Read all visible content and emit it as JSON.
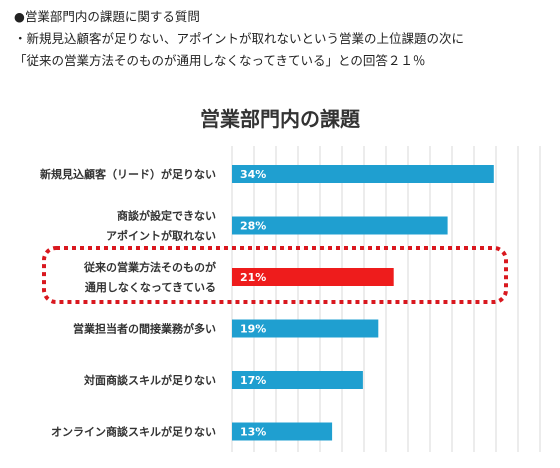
{
  "intro": {
    "line1": "●営業部門内の課題に関する質問",
    "line2": "・新規見込顧客が足りない、アポイントが取れないという営業の上位課題の次に",
    "line3": "「従来の営業方法そのものが通用しなくなってきている」との回答２１％"
  },
  "chart_data": {
    "type": "bar",
    "orientation": "horizontal",
    "title": "営業部門内の課題",
    "categories": [
      [
        "新規見込顧客（リード）が足りない"
      ],
      [
        "商談が設定できない",
        "アポイントが取れない"
      ],
      [
        "従来の営業方法そのものが",
        "通用しなくなってきている"
      ],
      [
        "営業担当者の間接業務が多い"
      ],
      [
        "対面商談スキルが足りない"
      ],
      [
        "オンライン商談スキルが足りない"
      ]
    ],
    "values": [
      34,
      28,
      21,
      19,
      17,
      13
    ],
    "value_labels": [
      "34%",
      "28%",
      "21%",
      "19%",
      "17%",
      "13%"
    ],
    "xlim": [
      0,
      40
    ],
    "grid": true,
    "colors": {
      "default": "#1f9fd0",
      "highlight": "#ee1c1c",
      "grid": "#d9d9d9"
    },
    "highlight_index": 2
  }
}
